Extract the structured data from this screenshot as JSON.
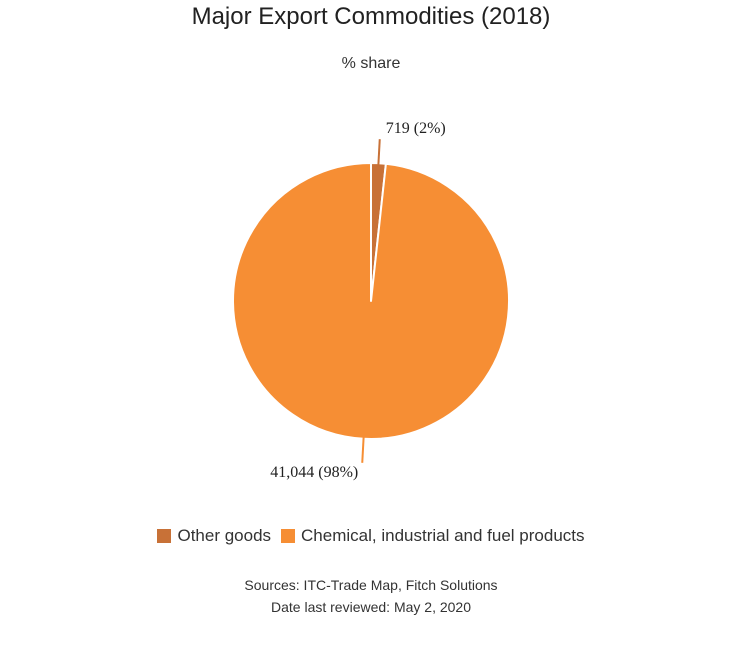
{
  "title": "Major Export Commodities (2018)",
  "subtitle": "% share",
  "chart_data": {
    "type": "pie",
    "title": "Major Export Commodities (2018)",
    "subtitle": "% share",
    "slices": [
      {
        "name": "Other goods",
        "value": 719,
        "percent": 2,
        "label": "719 (2%)",
        "color": "#c87137"
      },
      {
        "name": "Chemical, industrial and fuel products",
        "value": 41044,
        "percent": 98,
        "label": "41,044 (98%)",
        "color": "#f68e34"
      }
    ],
    "legend_position": "bottom"
  },
  "legend": [
    {
      "label": "Other goods",
      "color": "#c87137"
    },
    {
      "label": "Chemical, industrial and fuel products",
      "color": "#f68e34"
    }
  ],
  "footer": {
    "sources": "Sources: ITC-Trade Map, Fitch Solutions",
    "reviewed": "Date last reviewed: May 2, 2020"
  }
}
